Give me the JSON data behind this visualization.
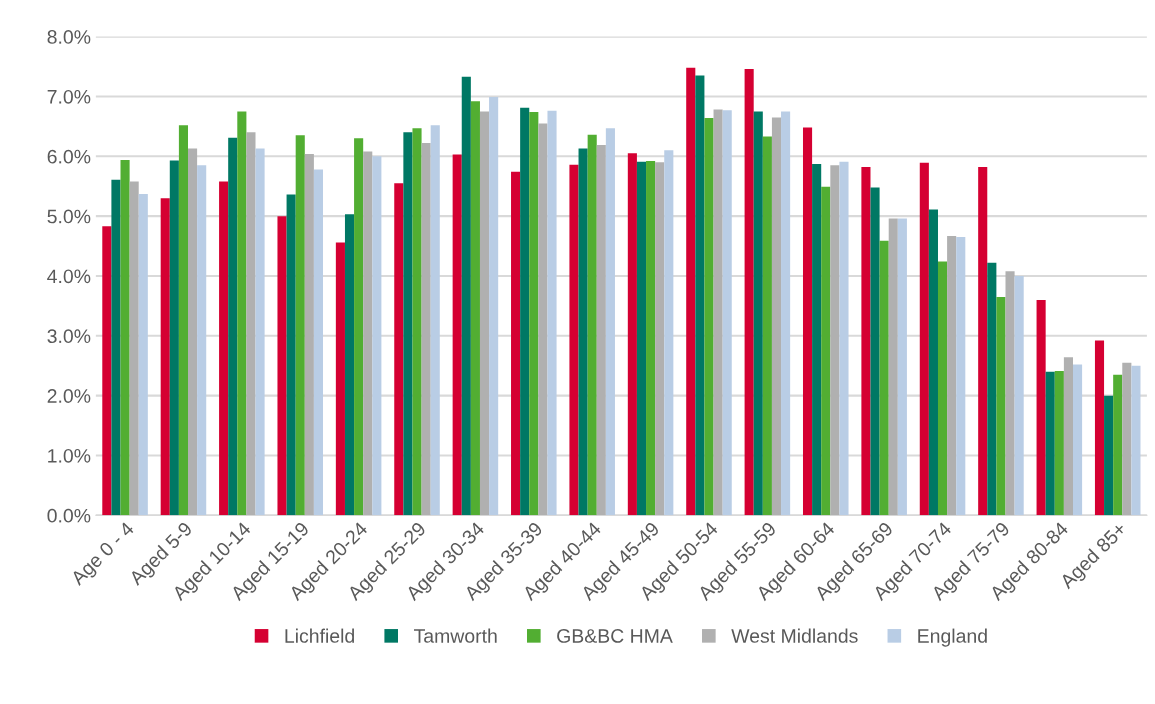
{
  "chart_data": {
    "type": "bar",
    "categories": [
      "Age 0 - 4",
      "Aged 5-9",
      "Aged 10-14",
      "Aged 15-19",
      "Aged 20-24",
      "Aged 25-29",
      "Aged 30-34",
      "Aged 35-39",
      "Aged 40-44",
      "Aged 45-49",
      "Aged 50-54",
      "Aged 55-59",
      "Aged 60-64",
      "Aged 65-69",
      "Aged 70-74",
      "Aged 75-79",
      "Aged 80-84",
      "Aged 85+"
    ],
    "series": [
      {
        "name": "Lichfield",
        "color": "#d50032",
        "values": [
          4.83,
          5.3,
          5.58,
          5.0,
          4.56,
          5.55,
          6.03,
          5.74,
          5.86,
          6.05,
          7.48,
          7.46,
          6.48,
          5.82,
          5.89,
          5.82,
          3.6,
          2.92
        ]
      },
      {
        "name": "Tamworth",
        "color": "#007864",
        "values": [
          5.61,
          5.93,
          6.31,
          5.36,
          5.03,
          6.4,
          7.33,
          6.81,
          6.13,
          5.91,
          7.35,
          6.75,
          5.87,
          5.48,
          5.11,
          4.22,
          2.4,
          2.0
        ]
      },
      {
        "name": "GB&BC HMA",
        "color": "#52ae32",
        "values": [
          5.94,
          6.52,
          6.75,
          6.35,
          6.3,
          6.47,
          6.92,
          6.74,
          6.36,
          5.92,
          6.64,
          6.33,
          5.49,
          4.59,
          4.24,
          3.65,
          2.41,
          2.35
        ]
      },
      {
        "name": "West Midlands",
        "color": "#b0b0b0",
        "values": [
          5.58,
          6.13,
          6.4,
          6.04,
          6.08,
          6.22,
          6.75,
          6.55,
          6.19,
          5.9,
          6.78,
          6.65,
          5.85,
          4.96,
          4.67,
          4.08,
          2.64,
          2.55
        ]
      },
      {
        "name": "England",
        "color": "#b9cde5",
        "values": [
          5.37,
          5.85,
          6.13,
          5.78,
          6.0,
          6.52,
          6.99,
          6.76,
          6.47,
          6.1,
          6.77,
          6.75,
          5.91,
          4.96,
          4.65,
          4.0,
          2.52,
          2.5
        ]
      }
    ],
    "ylim": [
      0,
      8
    ],
    "yticks": [
      {
        "value": 0,
        "label": "0.0%"
      },
      {
        "value": 1,
        "label": "1.0%"
      },
      {
        "value": 2,
        "label": "2.0%"
      },
      {
        "value": 3,
        "label": "3.0%"
      },
      {
        "value": 4,
        "label": "4.0%"
      },
      {
        "value": 5,
        "label": "5.0%"
      },
      {
        "value": 6,
        "label": "6.0%"
      },
      {
        "value": 7,
        "label": "7.0%"
      },
      {
        "value": 8,
        "label": "8.0%"
      }
    ],
    "grid": "y",
    "legend": "bottom"
  }
}
